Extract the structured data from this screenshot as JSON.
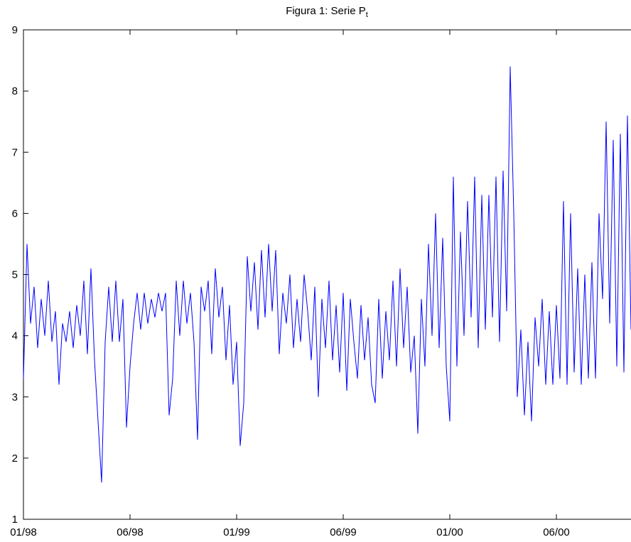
{
  "chart_data": {
    "type": "line",
    "title": "Figura 1: Serie P",
    "title_subscript": "t",
    "x": [
      1,
      6,
      11,
      16,
      21,
      26,
      31,
      36,
      41,
      46,
      51,
      56,
      61,
      66,
      71,
      76,
      81,
      86,
      91,
      96,
      101,
      106,
      111,
      116,
      121,
      126,
      131,
      136,
      141,
      146,
      151,
      156,
      161,
      166,
      171,
      176,
      181,
      186,
      191,
      196,
      201,
      206,
      211,
      216,
      221,
      226,
      231,
      236,
      241,
      246,
      251,
      256,
      261,
      266,
      271,
      276,
      281,
      286,
      291,
      296,
      301,
      306,
      311,
      316,
      321,
      326,
      331,
      336,
      341,
      346,
      351,
      356,
      361,
      366,
      371,
      376,
      381,
      386,
      391,
      396,
      401,
      406,
      411,
      416,
      421,
      426,
      431,
      436,
      441,
      446,
      451,
      456,
      461,
      466,
      471,
      476,
      481,
      486,
      491,
      496,
      501,
      506,
      511,
      516,
      521,
      526,
      531,
      536,
      541,
      546,
      551,
      556,
      561,
      566,
      571,
      576,
      581,
      586,
      591,
      596,
      601,
      606,
      611,
      616,
      621,
      626,
      631,
      636,
      641,
      646,
      651,
      656,
      661,
      666,
      671,
      676,
      681,
      686,
      691,
      696,
      701,
      706,
      711,
      716,
      721,
      726,
      731,
      736,
      741,
      746,
      751,
      756,
      761,
      766,
      771,
      776,
      781,
      786,
      791,
      796,
      801,
      806,
      811,
      816,
      821,
      826,
      831,
      836,
      841,
      846,
      851,
      856
    ],
    "series": [
      {
        "name": "P",
        "color": "#0000ff",
        "values": [
          3.3,
          5.5,
          4.2,
          4.8,
          3.8,
          4.6,
          4.0,
          4.9,
          3.9,
          4.4,
          3.2,
          4.2,
          3.9,
          4.4,
          3.8,
          4.5,
          4.0,
          4.9,
          3.7,
          5.1,
          3.6,
          2.6,
          1.6,
          3.9,
          4.8,
          3.9,
          4.9,
          3.9,
          4.6,
          2.5,
          3.5,
          4.2,
          4.7,
          4.1,
          4.7,
          4.2,
          4.6,
          4.3,
          4.7,
          4.4,
          4.7,
          2.7,
          3.3,
          4.9,
          4.0,
          4.9,
          4.2,
          4.7,
          3.9,
          2.3,
          4.8,
          4.4,
          4.9,
          3.7,
          5.1,
          4.3,
          4.8,
          3.6,
          4.5,
          3.2,
          3.9,
          2.2,
          2.9,
          5.3,
          4.4,
          5.2,
          4.1,
          5.4,
          4.3,
          5.5,
          4.4,
          5.4,
          3.7,
          4.7,
          4.2,
          5.0,
          3.8,
          4.6,
          3.9,
          5.0,
          4.4,
          3.6,
          4.8,
          3.0,
          4.6,
          3.8,
          4.9,
          3.6,
          4.5,
          3.4,
          4.7,
          3.1,
          4.6,
          3.9,
          3.3,
          4.5,
          3.6,
          4.3,
          3.2,
          2.9,
          4.6,
          3.3,
          4.4,
          3.6,
          4.9,
          3.5,
          5.1,
          3.8,
          4.8,
          3.4,
          4.0,
          2.4,
          4.6,
          3.5,
          5.5,
          4.0,
          6.0,
          3.8,
          5.6,
          3.5,
          2.6,
          6.6,
          3.5,
          5.7,
          4.0,
          6.2,
          4.3,
          6.6,
          3.8,
          6.3,
          4.1,
          6.3,
          4.3,
          6.6,
          3.9,
          6.7,
          4.4,
          8.4,
          6.0,
          3.0,
          4.1,
          2.7,
          3.9,
          2.6,
          4.3,
          3.5,
          4.6,
          3.2,
          4.4,
          3.2,
          4.5,
          3.3,
          6.2,
          3.2,
          6.0,
          3.4,
          5.1,
          3.2,
          5.0,
          3.3,
          5.2,
          3.3,
          6.0,
          4.6,
          7.5,
          4.2,
          7.2,
          3.5,
          7.3,
          3.4,
          7.6,
          4.1
        ]
      }
    ],
    "xlim": [
      1,
      856
    ],
    "xticks": [
      {
        "value": 1,
        "label": "01/98"
      },
      {
        "value": 151,
        "label": "06/98"
      },
      {
        "value": 301,
        "label": "01/99"
      },
      {
        "value": 451,
        "label": "06/99"
      },
      {
        "value": 601,
        "label": "01/00"
      },
      {
        "value": 751,
        "label": "06/00"
      }
    ],
    "ylim": [
      1,
      9
    ],
    "yticks": [
      1,
      2,
      3,
      4,
      5,
      6,
      7,
      8,
      9
    ],
    "grid": false
  }
}
